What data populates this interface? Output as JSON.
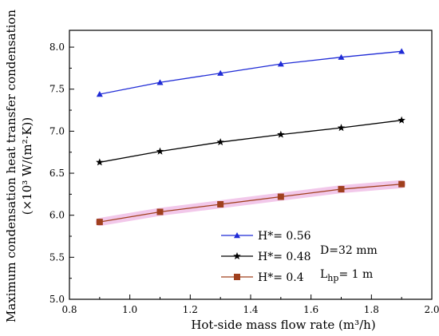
{
  "chart_data": {
    "type": "line",
    "xlabel": "Hot-side mass flow rate (m³/h)",
    "ylabel_line1": "Maximum condensation heat transfer condensation",
    "ylabel_line2": "(×10³ W/(m²·K))",
    "xlim": [
      0.8,
      2.0
    ],
    "ylim": [
      5.0,
      8.2
    ],
    "x_ticks": [
      "0.8",
      "1.0",
      "1.2",
      "1.4",
      "1.6",
      "1.8",
      "2.0"
    ],
    "y_ticks": [
      "5.0",
      "5.5",
      "6.0",
      "6.5",
      "7.0",
      "7.5",
      "8.0"
    ],
    "x": [
      0.9,
      1.1,
      1.3,
      1.5,
      1.7,
      1.9
    ],
    "series": [
      {
        "name": "H*= 0.56",
        "values": [
          7.44,
          7.58,
          7.69,
          7.8,
          7.88,
          7.95
        ],
        "color": "#1f2bd6",
        "marker": "triangle"
      },
      {
        "name": "H*= 0.48",
        "values": [
          6.63,
          6.76,
          6.87,
          6.96,
          7.04,
          7.13
        ],
        "color": "#000000",
        "marker": "star"
      },
      {
        "name": "H*= 0.4",
        "values": [
          5.92,
          6.04,
          6.13,
          6.22,
          6.31,
          6.37
        ],
        "color": "#a0401e",
        "marker": "square"
      }
    ],
    "annotations": {
      "diameter": "D=32 mm",
      "length_main": "L",
      "length_sub": "hp",
      "length_value": "= 1 m"
    },
    "legend_position": "bottom-center",
    "grid": false
  }
}
